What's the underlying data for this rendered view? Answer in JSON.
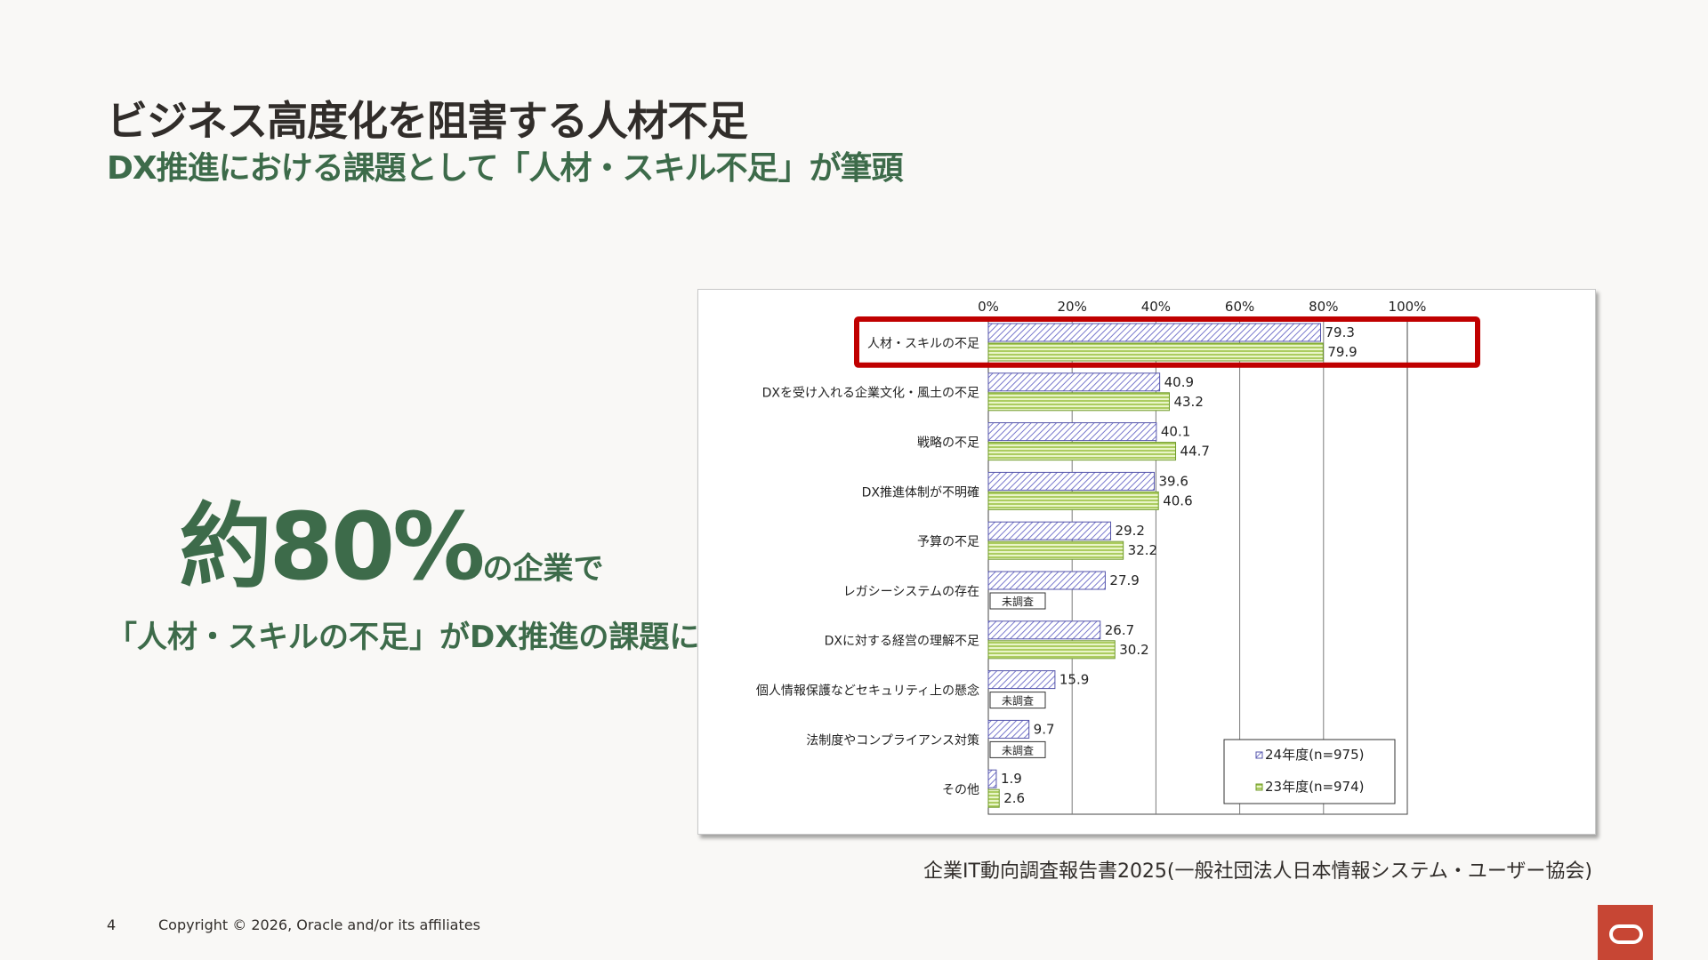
{
  "slide": {
    "title": "ビジネス高度化を阻害する人材不足",
    "subtitle": "DX推進における課題として「人材・スキル不足」が筆頭",
    "message_big": "約80%",
    "message_tail": "の企業で",
    "message_line2": "「人材・スキルの不足」がDX推進の課題に",
    "source": "企業IT動向調査報告書2025(一般社団法人日本情報システム・ユーザー協会)",
    "page_number": "4",
    "copyright": "Copyright © 2026, Oracle and/or its affiliates",
    "logo_icon": "oracle-logo-icon"
  },
  "chart_data": {
    "type": "bar",
    "orientation": "horizontal",
    "categories": [
      "人材・スキルの不足",
      "DXを受け入れる企業文化・風土の不足",
      "戦略の不足",
      "DX推進体制が不明確",
      "予算の不足",
      "レガシーシステムの存在",
      "DXに対する経営の理解不足",
      "個人情報保護などセキュリティ上の懸念",
      "法制度やコンプライアンス対策",
      "その他"
    ],
    "series": [
      {
        "name": "24年度(n=975)",
        "values": [
          79.3,
          40.9,
          40.1,
          39.6,
          29.2,
          27.9,
          26.7,
          15.9,
          9.7,
          1.9
        ],
        "color": "#b7b7e6",
        "pattern": "diagonal-hatch"
      },
      {
        "name": "23年度(n=974)",
        "values": [
          79.9,
          43.2,
          44.7,
          40.6,
          32.2,
          null,
          30.2,
          null,
          null,
          2.6
        ],
        "color": "#d7eca3",
        "pattern": "horizontal-lines"
      }
    ],
    "missing_label": "未調査",
    "xlim": [
      0,
      100
    ],
    "x_ticks": [
      "0%",
      "20%",
      "40%",
      "60%",
      "80%",
      "100%"
    ],
    "x_grid": true,
    "legend_position": "bottom-right",
    "highlight_category_index": 0,
    "highlight_color": "#c00000"
  }
}
